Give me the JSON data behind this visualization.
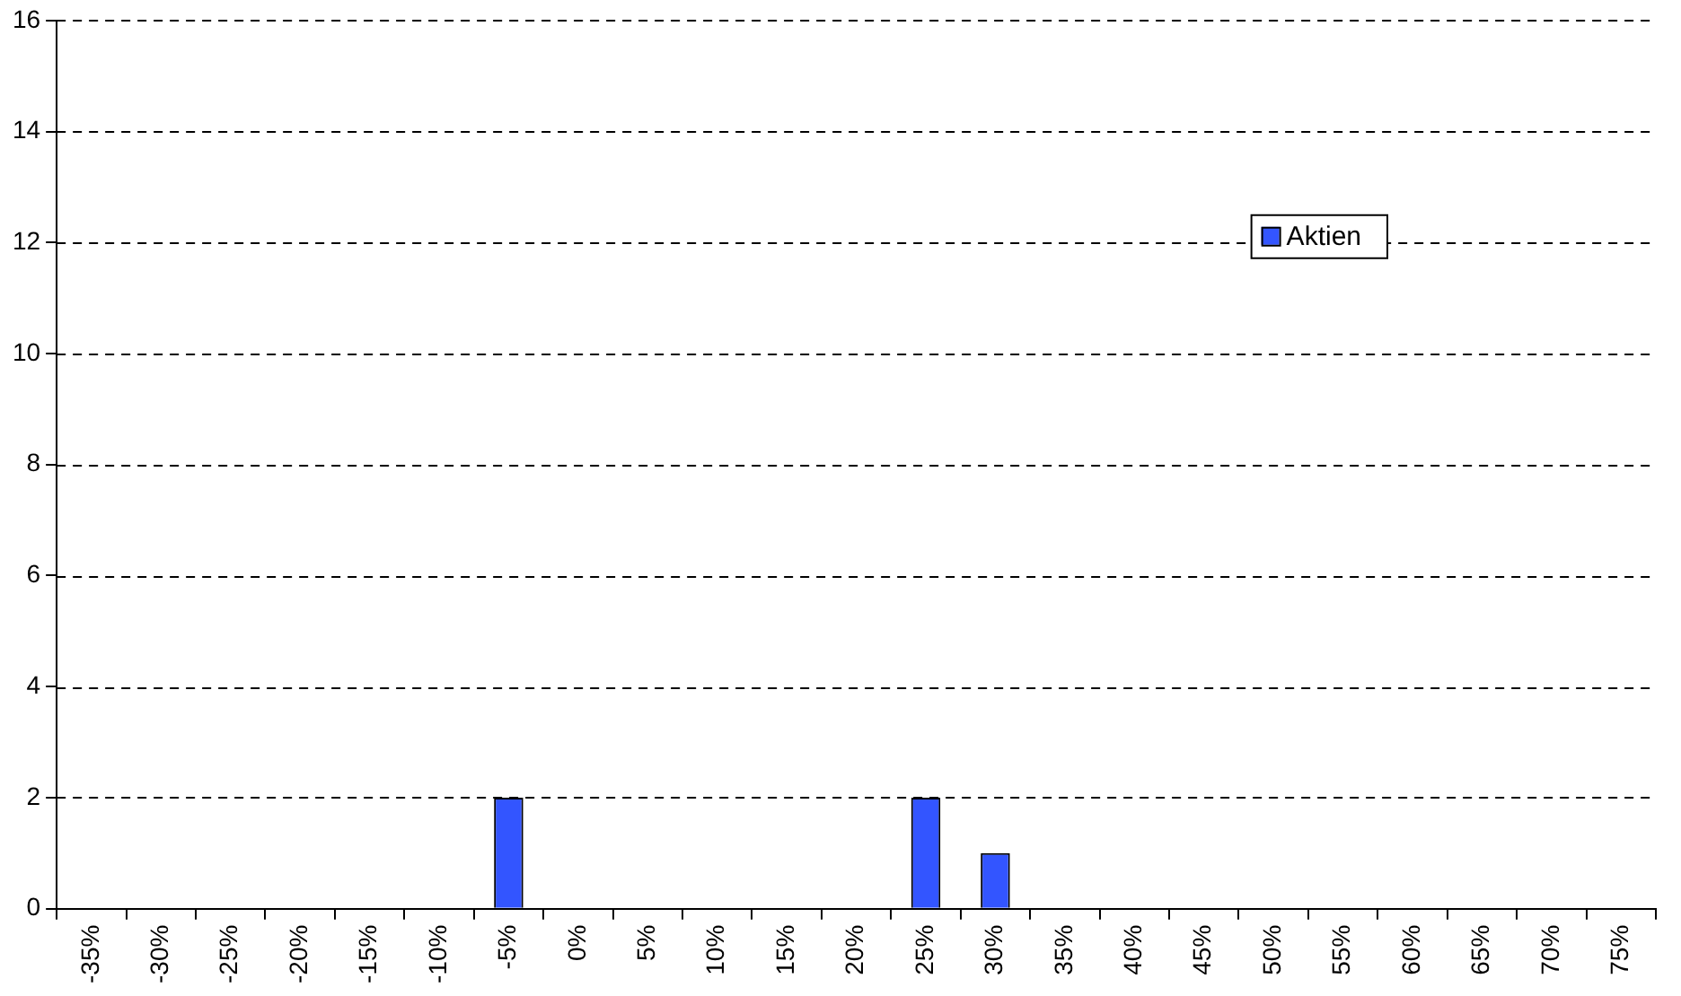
{
  "chart_data": {
    "type": "bar",
    "categories": [
      "-35%",
      "-30%",
      "-25%",
      "-20%",
      "-15%",
      "-10%",
      "-5%",
      "0%",
      "5%",
      "10%",
      "15%",
      "20%",
      "25%",
      "30%",
      "35%",
      "40%",
      "45%",
      "50%",
      "55%",
      "60%",
      "65%",
      "70%",
      "75%"
    ],
    "series": [
      {
        "name": "Aktien",
        "color": "#3355ff",
        "values": [
          0,
          0,
          0,
          0,
          0,
          0,
          2,
          0,
          0,
          0,
          0,
          0,
          2,
          1,
          0,
          0,
          0,
          0,
          0,
          0,
          0,
          0,
          0
        ]
      }
    ],
    "ylim": [
      0,
      16
    ],
    "yticks": [
      0,
      2,
      4,
      6,
      8,
      10,
      12,
      14,
      16
    ],
    "grid": "y",
    "legend": "top right"
  }
}
